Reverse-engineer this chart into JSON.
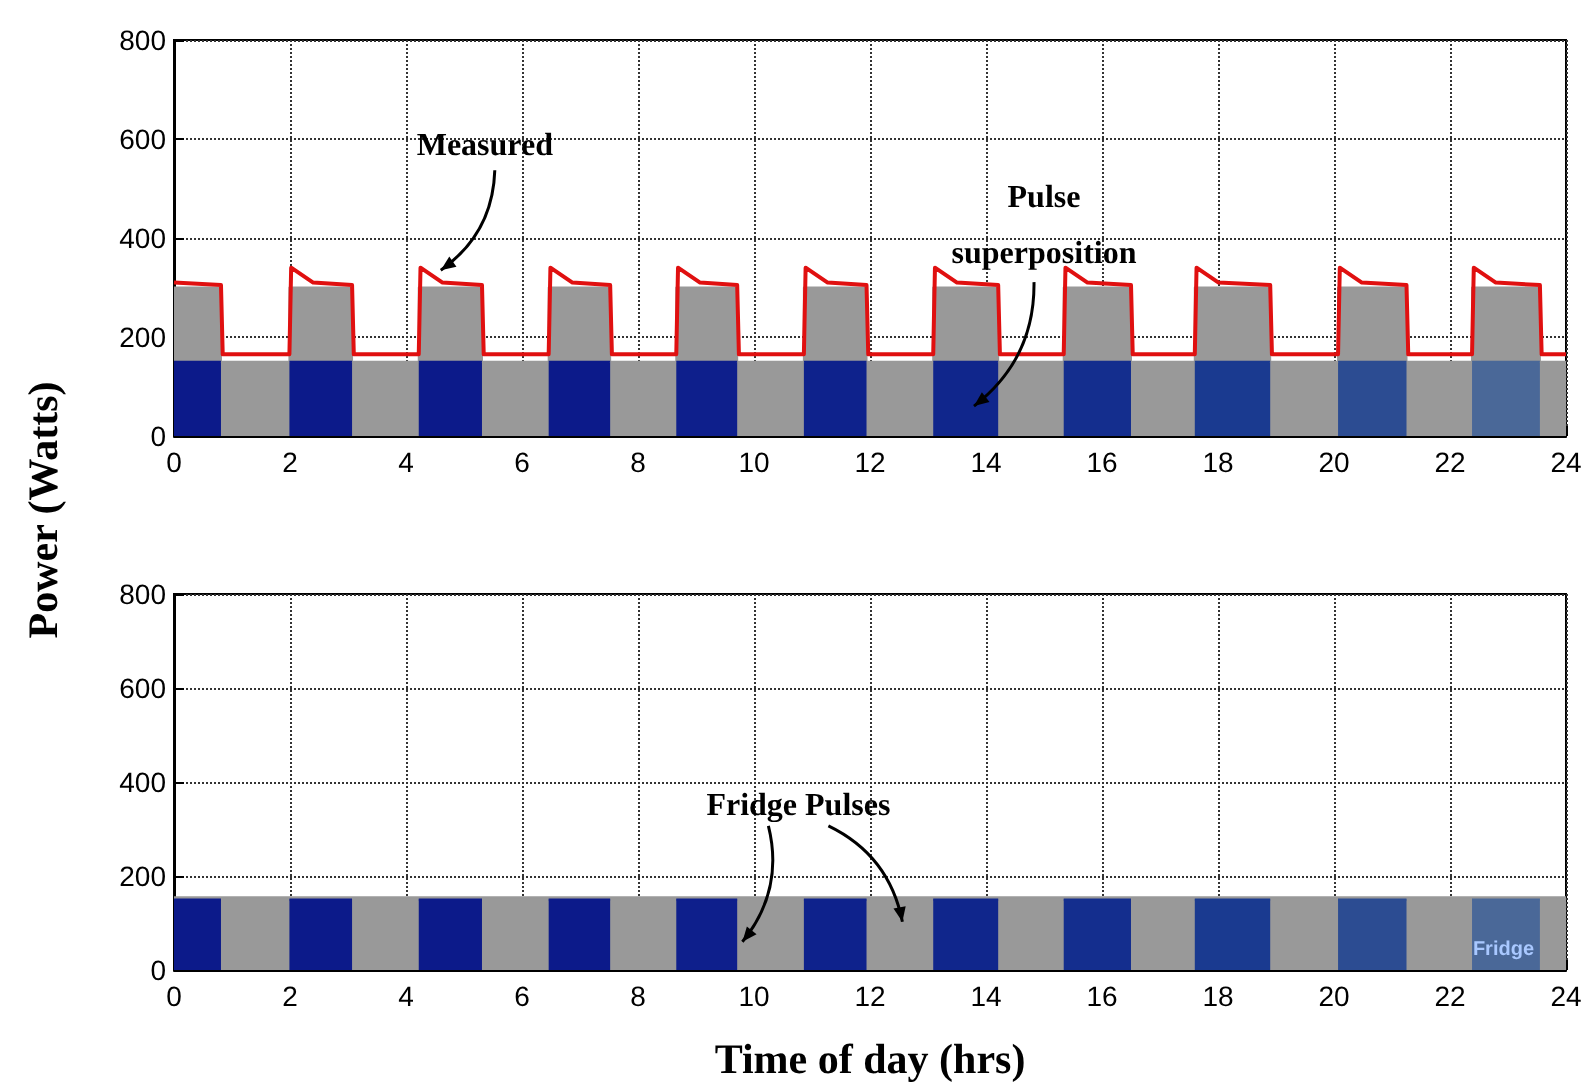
{
  "chart_data": [
    {
      "type": "area",
      "ylabel": "Power (Watts)",
      "xlim": [
        0,
        24
      ],
      "xticks": [
        0,
        2,
        4,
        6,
        8,
        10,
        12,
        14,
        16,
        18,
        20,
        22,
        24
      ],
      "ylim": [
        0,
        800
      ],
      "yticks": [
        0,
        200,
        400,
        600,
        800
      ],
      "grid": true,
      "annotations": [
        {
          "text": "Measured",
          "x": 4.6,
          "y": 335
        },
        "Pulse superposition"
      ],
      "series": [
        {
          "color": "#999999",
          "x": [
            0,
            0.81,
            0.81,
            1.99,
            1.99,
            3.07,
            3.07,
            4.22,
            4.22,
            5.31,
            5.31,
            6.46,
            6.46,
            7.52,
            7.52,
            8.66,
            8.66,
            9.71,
            9.71,
            10.86,
            10.86,
            11.94,
            11.94,
            13.09,
            13.09,
            14.21,
            14.21,
            15.34,
            15.34,
            16.5,
            16.5,
            17.6,
            17.6,
            18.9,
            18.9,
            20.07,
            20.07,
            21.25,
            21.25,
            22.38,
            22.38,
            23.55,
            23.55,
            24
          ],
          "values": [
            300,
            300,
            150,
            150,
            300,
            300,
            150,
            150,
            300,
            300,
            150,
            150,
            300,
            300,
            150,
            150,
            300,
            300,
            150,
            150,
            300,
            300,
            150,
            150,
            300,
            300,
            150,
            150,
            300,
            300,
            150,
            150,
            300,
            300,
            150,
            150,
            300,
            300,
            150,
            150,
            300,
            300,
            150,
            150
          ]
        },
        {
          "color": "#0c1a8a",
          "x": [
            0,
            0.81
          ],
          "values": [
            150,
            150
          ]
        },
        {
          "color": "#0c1a8a",
          "x": [
            1.99,
            3.07
          ],
          "values": [
            150,
            150
          ]
        },
        {
          "color": "#0c1a8a",
          "x": [
            4.22,
            5.31
          ],
          "values": [
            150,
            150
          ]
        },
        {
          "color": "#0c1a8a",
          "x": [
            6.46,
            7.52
          ],
          "values": [
            150,
            150
          ]
        },
        {
          "color": "#0e1f8c",
          "x": [
            8.66,
            9.71
          ],
          "values": [
            150,
            150
          ]
        },
        {
          "color": "#0e228c",
          "x": [
            10.86,
            11.94
          ],
          "values": [
            150,
            150
          ]
        },
        {
          "color": "#10268c",
          "x": [
            13.09,
            14.21
          ],
          "values": [
            150,
            150
          ]
        },
        {
          "color": "#142e8e",
          "x": [
            15.34,
            16.5
          ],
          "values": [
            150,
            150
          ]
        },
        {
          "color": "#1a3a90",
          "x": [
            17.6,
            18.9
          ],
          "values": [
            150,
            150
          ]
        },
        {
          "color": "#2c4c92",
          "x": [
            20.07,
            21.25
          ],
          "values": [
            150,
            150
          ]
        },
        {
          "color": "#4a6898",
          "x": [
            22.38,
            23.55
          ],
          "values": [
            150,
            150
          ]
        },
        {
          "type": "line",
          "color": "#e01010",
          "x": [
            0,
            0.81,
            0.84,
            1.99,
            2.02,
            2.4,
            3.07,
            3.1,
            4.22,
            4.25,
            4.63,
            5.31,
            5.34,
            6.46,
            6.49,
            6.87,
            7.52,
            7.55,
            8.66,
            8.69,
            9.07,
            9.71,
            9.74,
            10.86,
            10.89,
            11.27,
            11.94,
            11.97,
            13.09,
            13.12,
            13.5,
            14.21,
            14.24,
            15.34,
            15.37,
            15.75,
            16.5,
            16.53,
            17.6,
            17.63,
            18.01,
            18.9,
            18.93,
            20.07,
            20.1,
            20.48,
            21.25,
            21.28,
            22.38,
            22.41,
            22.79,
            23.55,
            23.58,
            24
          ],
          "values": [
            310,
            305,
            165,
            165,
            340,
            310,
            305,
            165,
            165,
            340,
            310,
            305,
            165,
            165,
            340,
            310,
            305,
            165,
            165,
            340,
            310,
            305,
            165,
            165,
            340,
            310,
            305,
            165,
            165,
            340,
            310,
            305,
            165,
            165,
            340,
            310,
            305,
            165,
            165,
            340,
            310,
            305,
            165,
            165,
            340,
            310,
            305,
            165,
            165,
            340,
            310,
            305,
            165,
            165
          ]
        }
      ]
    },
    {
      "type": "area",
      "xlabel": "Time of day (hrs)",
      "xlim": [
        0,
        24
      ],
      "xticks": [
        0,
        2,
        4,
        6,
        8,
        10,
        12,
        14,
        16,
        18,
        20,
        22,
        24
      ],
      "ylim": [
        0,
        800
      ],
      "yticks": [
        0,
        200,
        400,
        600,
        800
      ],
      "grid": true,
      "annotations": [
        {
          "text": "Fridge Pulses",
          "x": 9.8,
          "y": 60
        },
        "Fridge"
      ],
      "series": [
        {
          "color": "#999999",
          "x": [
            0,
            24
          ],
          "values": [
            155,
            155
          ]
        },
        {
          "color": "#0c1a8a",
          "x": [
            0,
            0.81
          ],
          "values": [
            150,
            150
          ]
        },
        {
          "color": "#0c1a8a",
          "x": [
            1.99,
            3.07
          ],
          "values": [
            150,
            150
          ]
        },
        {
          "color": "#0c1a8a",
          "x": [
            4.22,
            5.31
          ],
          "values": [
            150,
            150
          ]
        },
        {
          "color": "#0c1a8a",
          "x": [
            6.46,
            7.52
          ],
          "values": [
            150,
            150
          ]
        },
        {
          "color": "#0e1f8c",
          "x": [
            8.66,
            9.71
          ],
          "values": [
            150,
            150
          ]
        },
        {
          "color": "#0e228c",
          "x": [
            10.86,
            11.94
          ],
          "values": [
            150,
            150
          ]
        },
        {
          "color": "#10268c",
          "x": [
            13.09,
            14.21
          ],
          "values": [
            150,
            150
          ]
        },
        {
          "color": "#142e8e",
          "x": [
            15.34,
            16.5
          ],
          "values": [
            150,
            150
          ]
        },
        {
          "color": "#1a3a90",
          "x": [
            17.6,
            18.9
          ],
          "values": [
            150,
            150
          ]
        },
        {
          "color": "#2c4c92",
          "x": [
            20.07,
            21.25
          ],
          "values": [
            150,
            150
          ]
        },
        {
          "color": "#4a6898",
          "x": [
            22.38,
            23.55
          ],
          "values": [
            150,
            150
          ]
        }
      ]
    }
  ]
}
